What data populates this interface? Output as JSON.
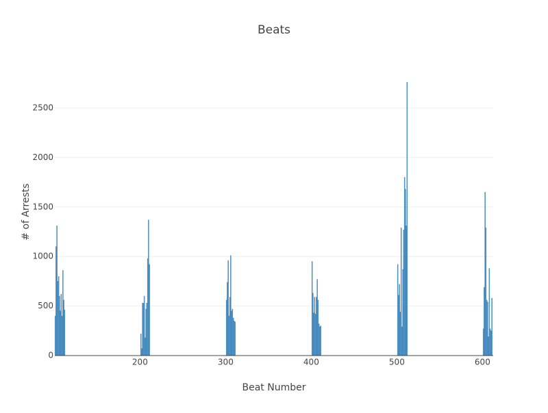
{
  "chart_data": {
    "type": "bar",
    "title": "Beats",
    "x_label": "Beat Number",
    "y_label": "# of Arrests",
    "x": [
      101,
      102,
      103,
      104,
      105,
      106,
      107,
      108,
      109,
      110,
      111,
      112,
      201,
      202,
      203,
      204,
      205,
      206,
      207,
      208,
      209,
      210,
      211,
      301,
      302,
      303,
      304,
      305,
      306,
      307,
      308,
      309,
      310,
      311,
      401,
      402,
      403,
      404,
      405,
      406,
      407,
      408,
      409,
      410,
      411,
      501,
      502,
      503,
      504,
      505,
      506,
      507,
      508,
      509,
      510,
      511,
      512,
      601,
      602,
      603,
      604,
      605,
      606,
      607,
      608,
      609,
      610,
      611
    ],
    "values": [
      400,
      1100,
      1310,
      750,
      800,
      600,
      450,
      620,
      400,
      860,
      560,
      460,
      220,
      70,
      530,
      530,
      600,
      180,
      470,
      530,
      980,
      1370,
      920,
      560,
      740,
      960,
      400,
      590,
      1010,
      450,
      470,
      380,
      350,
      340,
      950,
      630,
      430,
      590,
      420,
      590,
      770,
      560,
      320,
      290,
      300,
      920,
      610,
      720,
      440,
      1290,
      290,
      870,
      1270,
      1800,
      1680,
      1310,
      2760,
      270,
      690,
      1650,
      1290,
      560,
      540,
      190,
      880,
      270,
      250,
      580
    ],
    "color": "#5a9fd4",
    "xlim": [
      100.5,
      612.5
    ],
    "ylim": [
      0,
      2900
    ],
    "xticks": [
      200,
      300,
      400,
      500,
      600
    ],
    "yticks": [
      0,
      500,
      1000,
      1500,
      2000,
      2500
    ],
    "grid": true
  }
}
